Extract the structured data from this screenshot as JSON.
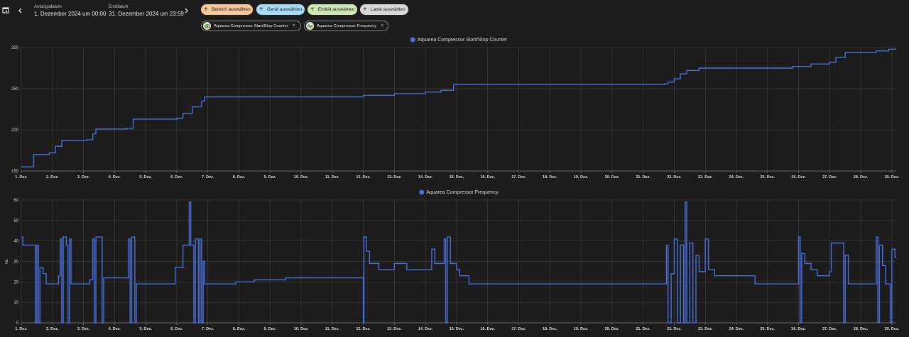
{
  "toolbar": {
    "start_label": "Anfangsdatum",
    "start_value": "1. Dezember 2024 um 00:00",
    "end_label": "Enddatum",
    "end_value": "31. Dezember 2024 um 23:59",
    "filters": [
      "Bereich auswählen",
      "Gerät auswählen",
      "Entität auswählen",
      "Label auswählen"
    ],
    "entities": [
      "Aquarea Compressor Start/Stop Counter",
      "Aquarea Compressor Frequency"
    ]
  },
  "chart_data": [
    {
      "type": "line",
      "step": true,
      "grid": true,
      "x": [
        1.0,
        1.4,
        1.9,
        2.1,
        2.3,
        3.1,
        3.3,
        3.4,
        4.4,
        4.6,
        6.0,
        6.2,
        6.5,
        6.8,
        6.9,
        12.0,
        13.0,
        14.0,
        14.5,
        14.9,
        21.7,
        21.8,
        22.0,
        22.2,
        22.4,
        22.8,
        25.8,
        26.4,
        27.0,
        27.2,
        27.5,
        28.5,
        28.9,
        29.14
      ],
      "series": [
        {
          "name": "Aquarea Compressor Start/Stop Counter",
          "color": "#4a6fd8",
          "values": [
            155,
            170,
            172,
            180,
            187,
            188,
            195,
            201,
            202,
            213,
            214,
            220,
            228,
            235,
            240,
            242,
            244,
            246,
            248,
            255,
            256,
            258,
            262,
            268,
            272,
            275,
            277,
            280,
            282,
            288,
            294,
            296,
            298,
            298
          ]
        }
      ],
      "xlim": [
        1,
        29.14
      ],
      "ylim": [
        150,
        300
      ],
      "yticks": [
        150,
        200,
        250,
        300
      ],
      "xticks": [
        {
          "value": 1,
          "label": "1. Dez."
        },
        {
          "value": 2,
          "label": "2. Dez."
        },
        {
          "value": 3,
          "label": "3. Dez."
        },
        {
          "value": 4,
          "label": "4. Dez."
        },
        {
          "value": 5,
          "label": "5. Dez."
        },
        {
          "value": 6,
          "label": "6. Dez."
        },
        {
          "value": 7,
          "label": "7. Dez."
        },
        {
          "value": 8,
          "label": "8. Dez."
        },
        {
          "value": 9,
          "label": "9. Dez."
        },
        {
          "value": 10,
          "label": "10. Dez."
        },
        {
          "value": 11,
          "label": "11. Dez."
        },
        {
          "value": 12,
          "label": "12. Dez."
        },
        {
          "value": 13,
          "label": "13. Dez."
        },
        {
          "value": 14,
          "label": "14. Dez."
        },
        {
          "value": 15,
          "label": "15. Dez."
        },
        {
          "value": 16,
          "label": "16. Dez."
        },
        {
          "value": 17,
          "label": "17. Dez."
        },
        {
          "value": 18,
          "label": "18. Dez."
        },
        {
          "value": 19,
          "label": "19. Dez."
        },
        {
          "value": 20,
          "label": "20. Dez."
        },
        {
          "value": 21,
          "label": "21. Dez."
        },
        {
          "value": 22,
          "label": "22. Dez."
        },
        {
          "value": 23,
          "label": "23. Dez."
        },
        {
          "value": 24,
          "label": "24. Dez."
        },
        {
          "value": 25,
          "label": "25. Dez."
        },
        {
          "value": 26,
          "label": "26. Dez."
        },
        {
          "value": 27,
          "label": "27. Dez."
        },
        {
          "value": 28,
          "label": "28. Dez."
        },
        {
          "value": 29,
          "label": "29. Dez."
        }
      ]
    },
    {
      "type": "line",
      "step": true,
      "grid": true,
      "y_label": "Hz",
      "x": [
        1.0,
        1.05,
        1.4,
        1.45,
        1.5,
        1.55,
        1.6,
        1.7,
        1.8,
        2.1,
        2.2,
        2.25,
        2.3,
        2.35,
        2.45,
        2.5,
        2.55,
        2.6,
        3.1,
        3.2,
        3.3,
        3.35,
        3.4,
        3.6,
        3.65,
        4.4,
        4.45,
        4.5,
        4.55,
        4.65,
        4.7,
        5.9,
        5.95,
        6.2,
        6.4,
        6.45,
        6.55,
        6.6,
        6.7,
        6.75,
        6.8,
        6.85,
        6.9,
        7.8,
        7.9,
        8.5,
        9.5,
        11.95,
        12.0,
        12.02,
        12.1,
        12.2,
        12.5,
        13.0,
        13.4,
        14.0,
        14.2,
        14.3,
        14.6,
        14.65,
        14.7,
        14.8,
        15.0,
        15.1,
        15.4,
        21.7,
        21.75,
        21.8,
        21.9,
        22.0,
        22.1,
        22.2,
        22.3,
        22.35,
        22.4,
        22.5,
        22.6,
        22.7,
        22.8,
        23.0,
        23.1,
        23.3,
        24.5,
        24.6,
        25.9,
        26.0,
        26.05,
        26.1,
        26.2,
        26.4,
        26.6,
        27.0,
        27.05,
        27.4,
        27.45,
        27.5,
        27.6,
        28.4,
        28.5,
        28.55,
        28.6,
        28.7,
        28.8,
        28.95,
        29.0,
        29.1,
        29.14
      ],
      "series": [
        {
          "name": "Aquarea Compressor Frequency",
          "color": "#4a6fd8",
          "values": [
            42,
            38,
            38,
            0,
            38,
            0,
            27,
            24,
            19,
            19,
            23,
            41,
            0,
            42,
            38,
            0,
            41,
            19,
            19,
            21,
            41,
            0,
            42,
            0,
            22,
            22,
            41,
            0,
            42,
            0,
            19,
            19,
            27,
            38,
            59,
            38,
            0,
            41,
            0,
            41,
            0,
            30,
            19,
            19,
            20,
            21,
            22,
            22,
            0,
            42,
            35,
            29,
            26,
            29,
            26,
            26,
            36,
            29,
            41,
            0,
            42,
            29,
            26,
            23,
            19,
            19,
            38,
            0,
            24,
            41,
            0,
            38,
            0,
            59,
            0,
            39,
            0,
            33,
            25,
            41,
            26,
            23,
            23,
            19,
            19,
            42,
            0,
            34,
            29,
            26,
            23,
            25,
            39,
            39,
            0,
            33,
            19,
            19,
            42,
            0,
            38,
            28,
            19,
            0,
            36,
            32,
            32
          ]
        }
      ],
      "xlim": [
        1,
        29.14
      ],
      "ylim": [
        0,
        60
      ],
      "yticks": [
        0,
        10,
        20,
        30,
        40,
        50,
        60
      ],
      "xticks": [
        {
          "value": 1,
          "label": "1. Dez."
        },
        {
          "value": 2,
          "label": "2. Dez."
        },
        {
          "value": 3,
          "label": "3. Dez."
        },
        {
          "value": 4,
          "label": "4. Dez."
        },
        {
          "value": 5,
          "label": "5. Dez."
        },
        {
          "value": 6,
          "label": "6. Dez."
        },
        {
          "value": 7,
          "label": "7. Dez."
        },
        {
          "value": 8,
          "label": "8. Dez."
        },
        {
          "value": 9,
          "label": "9. Dez."
        },
        {
          "value": 10,
          "label": "10. Dez."
        },
        {
          "value": 11,
          "label": "11. Dez."
        },
        {
          "value": 12,
          "label": "12. Dez."
        },
        {
          "value": 13,
          "label": "13. Dez."
        },
        {
          "value": 14,
          "label": "14. Dez."
        },
        {
          "value": 15,
          "label": "15. Dez."
        },
        {
          "value": 16,
          "label": "16. Dez."
        },
        {
          "value": 17,
          "label": "17. Dez."
        },
        {
          "value": 18,
          "label": "18. Dez."
        },
        {
          "value": 19,
          "label": "19. Dez."
        },
        {
          "value": 20,
          "label": "20. Dez."
        },
        {
          "value": 21,
          "label": "21. Dez."
        },
        {
          "value": 22,
          "label": "22. Dez."
        },
        {
          "value": 23,
          "label": "23. Dez."
        },
        {
          "value": 24,
          "label": "24. Dez."
        },
        {
          "value": 25,
          "label": "25. Dez."
        },
        {
          "value": 26,
          "label": "26. Dez."
        },
        {
          "value": 27,
          "label": "27. Dez."
        },
        {
          "value": 28,
          "label": "28. Dez."
        },
        {
          "value": 29,
          "label": "29. Dez."
        }
      ]
    }
  ]
}
